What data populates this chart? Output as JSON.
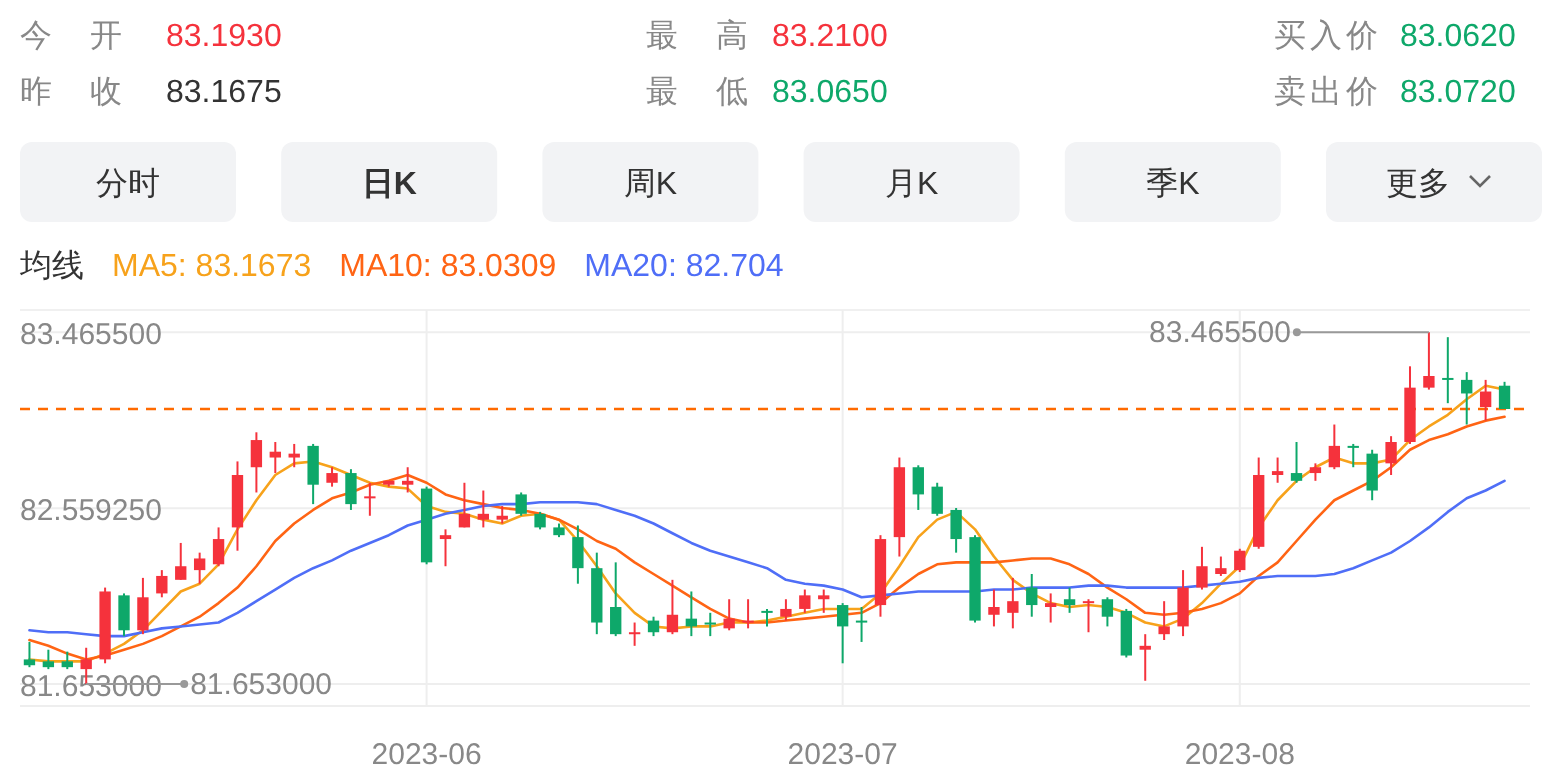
{
  "chart_data": {
    "type": "candlestick",
    "annotations": [
      "今开",
      "83.1930",
      "最高",
      "83.2100",
      "买入价",
      "83.0620",
      "昨收",
      "83.1675",
      "最低",
      "83.0650",
      "卖出价",
      "83.0720",
      "分时",
      "日K",
      "周K",
      "月K",
      "季K",
      "更多",
      "83.465500",
      "81.653000"
    ],
    "categories": [
      null,
      null,
      null,
      null,
      null,
      null,
      null,
      null,
      null,
      null,
      null,
      null,
      null,
      null,
      null,
      null,
      null,
      null,
      null,
      null,
      null,
      "2023-06",
      null,
      null,
      null,
      null,
      null,
      null,
      null,
      null,
      null,
      null,
      null,
      null,
      null,
      null,
      null,
      null,
      null,
      null,
      null,
      null,
      null,
      "2023-07",
      null,
      null,
      null,
      null,
      null,
      null,
      null,
      null,
      null,
      null,
      null,
      null,
      null,
      null,
      null,
      null,
      null,
      null,
      null,
      null,
      "2023-08",
      null,
      null,
      null,
      null,
      null,
      null,
      null,
      null,
      null,
      null,
      null,
      null,
      null,
      null
    ],
    "ohlc": [
      [
        81.78,
        81.87,
        81.74,
        81.75
      ],
      [
        81.77,
        81.83,
        81.73,
        81.74
      ],
      [
        81.77,
        81.82,
        81.73,
        81.74
      ],
      [
        81.73,
        81.84,
        81.653,
        81.78
      ],
      [
        81.78,
        82.15,
        81.76,
        82.13
      ],
      [
        82.11,
        82.12,
        81.9,
        81.93
      ],
      [
        81.93,
        82.2,
        81.91,
        82.1
      ],
      [
        82.12,
        82.24,
        82.1,
        82.21
      ],
      [
        82.19,
        82.38,
        82.19,
        82.26
      ],
      [
        82.24,
        82.33,
        82.17,
        82.3
      ],
      [
        82.27,
        82.46,
        82.26,
        82.4
      ],
      [
        82.46,
        82.8,
        82.34,
        82.73
      ],
      [
        82.77,
        82.95,
        82.64,
        82.91
      ],
      [
        82.82,
        82.9,
        82.74,
        82.85
      ],
      [
        82.82,
        82.89,
        82.77,
        82.84
      ],
      [
        82.88,
        82.89,
        82.58,
        82.68
      ],
      [
        82.69,
        82.77,
        82.67,
        82.74
      ],
      [
        82.74,
        82.76,
        82.55,
        82.58
      ],
      [
        82.61,
        82.69,
        82.52,
        82.62
      ],
      [
        82.68,
        82.7,
        82.67,
        82.7
      ],
      [
        82.68,
        82.77,
        82.64,
        82.7
      ],
      [
        82.66,
        82.67,
        82.27,
        82.28
      ],
      [
        82.4,
        82.45,
        82.26,
        82.42
      ],
      [
        82.46,
        82.69,
        82.46,
        82.53
      ],
      [
        82.5,
        82.65,
        82.46,
        82.53
      ],
      [
        82.5,
        82.57,
        82.48,
        82.52
      ],
      [
        82.63,
        82.64,
        82.52,
        82.53
      ],
      [
        82.53,
        82.54,
        82.45,
        82.46
      ],
      [
        82.46,
        82.48,
        82.41,
        82.42
      ],
      [
        82.41,
        82.47,
        82.17,
        82.25
      ],
      [
        82.25,
        82.33,
        81.91,
        81.97
      ],
      [
        82.05,
        82.28,
        81.9,
        81.91
      ],
      [
        81.91,
        81.97,
        81.85,
        81.92
      ],
      [
        81.98,
        82.0,
        81.9,
        81.92
      ],
      [
        81.92,
        82.19,
        81.91,
        82.01
      ],
      [
        81.99,
        82.13,
        81.9,
        81.95
      ],
      [
        81.97,
        82.02,
        81.9,
        81.96
      ],
      [
        81.94,
        82.09,
        81.93,
        81.99
      ],
      [
        81.97,
        82.09,
        81.94,
        81.98
      ],
      [
        82.03,
        82.04,
        81.95,
        82.02
      ],
      [
        82.0,
        82.09,
        81.98,
        82.04
      ],
      [
        82.04,
        82.14,
        82.02,
        82.11
      ],
      [
        82.09,
        82.14,
        82.02,
        82.11
      ],
      [
        82.06,
        82.07,
        81.76,
        81.95
      ],
      [
        81.98,
        82.05,
        81.87,
        81.97
      ],
      [
        82.06,
        82.42,
        82.0,
        82.4
      ],
      [
        82.41,
        82.82,
        82.31,
        82.77
      ],
      [
        82.77,
        82.78,
        82.55,
        82.63
      ],
      [
        82.67,
        82.69,
        82.52,
        82.53
      ],
      [
        82.55,
        82.56,
        82.33,
        82.4
      ],
      [
        82.41,
        82.42,
        81.97,
        81.98
      ],
      [
        82.01,
        82.14,
        81.95,
        82.05
      ],
      [
        82.02,
        82.2,
        81.94,
        82.08
      ],
      [
        82.15,
        82.22,
        82.0,
        82.06
      ],
      [
        82.05,
        82.12,
        81.97,
        82.07
      ],
      [
        82.09,
        82.15,
        82.02,
        82.06
      ],
      [
        82.07,
        82.09,
        81.92,
        82.08
      ],
      [
        82.09,
        82.1,
        81.95,
        82.0
      ],
      [
        82.03,
        82.04,
        81.79,
        81.8
      ],
      [
        81.83,
        81.91,
        81.67,
        81.85
      ],
      [
        81.91,
        82.08,
        81.88,
        81.95
      ],
      [
        81.95,
        82.24,
        81.9,
        82.15
      ],
      [
        82.15,
        82.36,
        82.14,
        82.26
      ],
      [
        82.22,
        82.31,
        82.21,
        82.25
      ],
      [
        82.24,
        82.35,
        82.23,
        82.34
      ],
      [
        82.36,
        82.82,
        82.35,
        82.73
      ],
      [
        82.73,
        82.82,
        82.69,
        82.75
      ],
      [
        82.74,
        82.9,
        82.69,
        82.7
      ],
      [
        82.74,
        82.79,
        82.7,
        82.77
      ],
      [
        82.77,
        82.99,
        82.76,
        82.88
      ],
      [
        82.88,
        82.89,
        82.77,
        82.87
      ],
      [
        82.84,
        82.86,
        82.6,
        82.65
      ],
      [
        82.79,
        82.93,
        82.73,
        82.9
      ],
      [
        82.9,
        83.29,
        82.89,
        83.18
      ],
      [
        83.18,
        83.4655,
        83.17,
        83.24
      ],
      [
        83.23,
        83.44,
        83.1,
        83.22
      ],
      [
        83.22,
        83.26,
        82.99,
        83.15
      ],
      [
        83.08,
        83.22,
        83.01,
        83.16
      ],
      [
        83.19,
        83.21,
        83.07,
        83.07
      ]
    ],
    "colors": [
      "#0ea86a",
      "#0ea86a",
      "#0ea86a",
      "#f5323c",
      "#f5323c",
      "#0ea86a",
      "#f5323c",
      "#f5323c",
      "#f5323c",
      "#f5323c",
      "#f5323c",
      "#f5323c",
      "#f5323c",
      "#f5323c",
      "#f5323c",
      "#0ea86a",
      "#f5323c",
      "#0ea86a",
      "#f5323c",
      "#f5323c",
      "#f5323c",
      "#0ea86a",
      "#f5323c",
      "#f5323c",
      "#f5323c",
      "#f5323c",
      "#0ea86a",
      "#0ea86a",
      "#0ea86a",
      "#0ea86a",
      "#0ea86a",
      "#0ea86a",
      "#f5323c",
      "#0ea86a",
      "#f5323c",
      "#0ea86a",
      "#0ea86a",
      "#f5323c",
      "#f5323c",
      "#0ea86a",
      "#f5323c",
      "#f5323c",
      "#f5323c",
      "#0ea86a",
      "#0ea86a",
      "#f5323c",
      "#f5323c",
      "#0ea86a",
      "#0ea86a",
      "#0ea86a",
      "#0ea86a",
      "#f5323c",
      "#f5323c",
      "#0ea86a",
      "#f5323c",
      "#0ea86a",
      "#f5323c",
      "#0ea86a",
      "#0ea86a",
      "#f5323c",
      "#f5323c",
      "#f5323c",
      "#f5323c",
      "#f5323c",
      "#f5323c",
      "#f5323c",
      "#f5323c",
      "#0ea86a",
      "#f5323c",
      "#f5323c",
      "#0ea86a",
      "#0ea86a",
      "#f5323c",
      "#f5323c",
      "#f5323c",
      "#0ea86a",
      "#0ea86a",
      "#f5323c",
      "#0ea86a"
    ],
    "series": [
      {
        "name": "MA5: 83.1673",
        "type": "line",
        "color": "#f7a21b",
        "values": [
          81.78,
          81.77,
          81.77,
          81.77,
          81.81,
          81.86,
          81.93,
          82.03,
          82.13,
          82.17,
          82.27,
          82.45,
          82.6,
          82.73,
          82.79,
          82.8,
          82.77,
          82.73,
          82.69,
          82.67,
          82.66,
          82.57,
          82.54,
          82.53,
          82.5,
          82.48,
          82.52,
          82.53,
          82.5,
          82.39,
          82.26,
          82.12,
          82.02,
          81.95,
          81.94,
          81.95,
          81.95,
          81.97,
          81.97,
          81.98,
          82.0,
          82.02,
          82.04,
          82.04,
          82.04,
          82.12,
          82.26,
          82.41,
          82.5,
          82.54,
          82.45,
          82.31,
          82.19,
          82.12,
          82.07,
          82.05,
          82.06,
          82.05,
          82.02,
          81.97,
          81.95,
          81.99,
          82.07,
          82.17,
          82.26,
          82.46,
          82.6,
          82.7,
          82.77,
          82.82,
          82.79,
          82.79,
          82.81,
          82.91,
          82.98,
          83.04,
          83.12,
          83.19,
          83.17
        ]
      },
      {
        "name": "MA10: 83.0309",
        "type": "line",
        "color": "#ff6414",
        "values": [
          81.88,
          81.85,
          81.81,
          81.78,
          81.8,
          81.83,
          81.86,
          81.9,
          81.95,
          82.0,
          82.07,
          82.15,
          82.26,
          82.39,
          82.48,
          82.55,
          82.61,
          82.64,
          82.68,
          82.7,
          82.73,
          82.69,
          82.63,
          82.6,
          82.58,
          82.56,
          82.55,
          82.53,
          82.5,
          82.45,
          82.39,
          82.35,
          82.28,
          82.22,
          82.16,
          82.1,
          82.04,
          81.99,
          81.97,
          81.97,
          81.98,
          81.99,
          82.0,
          82.01,
          82.02,
          82.07,
          82.15,
          82.22,
          82.27,
          82.28,
          82.28,
          82.28,
          82.29,
          82.3,
          82.3,
          82.27,
          82.22,
          82.15,
          82.09,
          82.02,
          82.01,
          82.02,
          82.04,
          82.07,
          82.12,
          82.21,
          82.28,
          82.39,
          82.5,
          82.6,
          82.65,
          82.7,
          82.77,
          82.86,
          82.91,
          82.94,
          82.98,
          83.01,
          83.03
        ]
      },
      {
        "name": "MA20: 82.704",
        "type": "line",
        "color": "#4f6ef7",
        "values": [
          81.93,
          81.92,
          81.92,
          81.91,
          81.9,
          81.9,
          81.92,
          81.94,
          81.95,
          81.96,
          81.97,
          82.02,
          82.08,
          82.14,
          82.2,
          82.25,
          82.29,
          82.34,
          82.38,
          82.42,
          82.47,
          82.5,
          82.53,
          82.55,
          82.57,
          82.58,
          82.58,
          82.59,
          82.59,
          82.59,
          82.58,
          82.55,
          82.52,
          82.48,
          82.43,
          82.38,
          82.34,
          82.31,
          82.28,
          82.25,
          82.19,
          82.17,
          82.16,
          82.14,
          82.1,
          82.11,
          82.12,
          82.13,
          82.13,
          82.13,
          82.13,
          82.14,
          82.14,
          82.15,
          82.15,
          82.15,
          82.16,
          82.16,
          82.15,
          82.15,
          82.15,
          82.15,
          82.16,
          82.17,
          82.18,
          82.2,
          82.21,
          82.21,
          82.21,
          82.22,
          82.25,
          82.29,
          82.33,
          82.39,
          82.46,
          82.54,
          82.61,
          82.65,
          82.7
        ]
      }
    ],
    "legend_title": "均线",
    "legend": "top left",
    "ylim": [
      81.54,
      83.58
    ],
    "yticks": [
      {
        "value": 83.4655,
        "label": "83.465500"
      },
      {
        "value": 82.55925,
        "label": "82.559250"
      },
      {
        "value": 81.653,
        "label": "81.653000"
      }
    ],
    "ref_lines": [
      {
        "axis": "y",
        "value": 83.07,
        "color": "#ff6a00",
        "line_style": "dashed"
      }
    ],
    "grid": true
  }
}
